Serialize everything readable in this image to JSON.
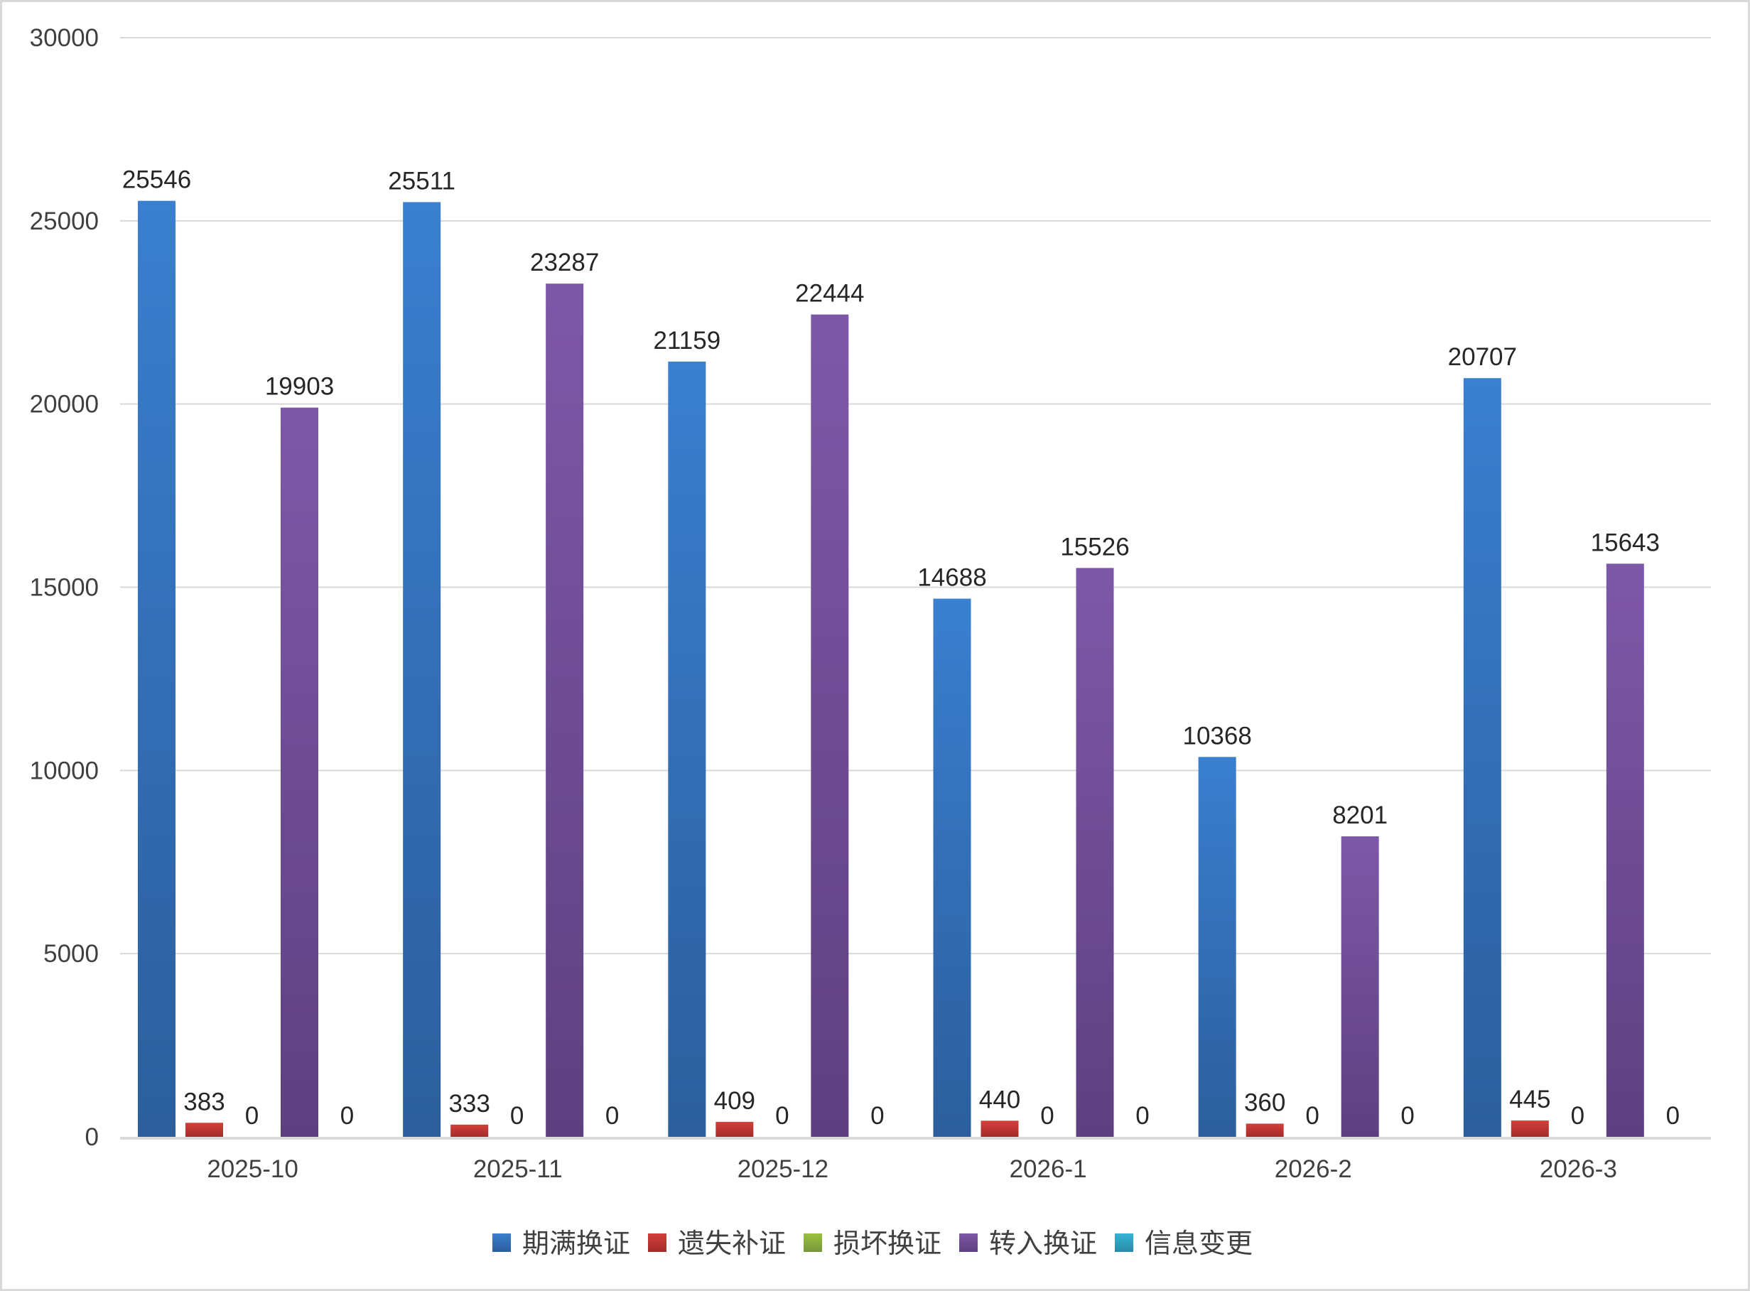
{
  "chart_data": {
    "type": "bar",
    "title": "",
    "xlabel": "",
    "ylabel": "",
    "categories": [
      "2025-10",
      "2025-11",
      "2025-12",
      "2026-1",
      "2026-2",
      "2026-3"
    ],
    "ylim": [
      0,
      30000
    ],
    "yticks": [
      "0",
      "5000",
      "10000",
      "15000",
      "20000",
      "25000",
      "30000"
    ],
    "grid": true,
    "legend_position": "bottom",
    "data_labels": true,
    "series": [
      {
        "name": "期满换证",
        "color": "#3a7fd0",
        "color_dark": "#2c5e9c",
        "values": [
          25546,
          25511,
          21159,
          14688,
          10368,
          20707
        ]
      },
      {
        "name": "遗失补证",
        "color": "#d23f3a",
        "color_dark": "#a32c2a",
        "values": [
          383,
          333,
          409,
          440,
          360,
          445
        ]
      },
      {
        "name": "损坏换证",
        "color": "#9bc140",
        "color_dark": "#76963a",
        "values": [
          0,
          0,
          0,
          0,
          0,
          0
        ]
      },
      {
        "name": "转入换证",
        "color": "#7e58a8",
        "color_dark": "#5e4080",
        "values": [
          19903,
          23287,
          22444,
          15526,
          8201,
          15643
        ]
      },
      {
        "name": "信息变更",
        "color": "#35b4d6",
        "color_dark": "#2a8aa6",
        "values": [
          0,
          0,
          0,
          0,
          0,
          0
        ]
      }
    ]
  }
}
